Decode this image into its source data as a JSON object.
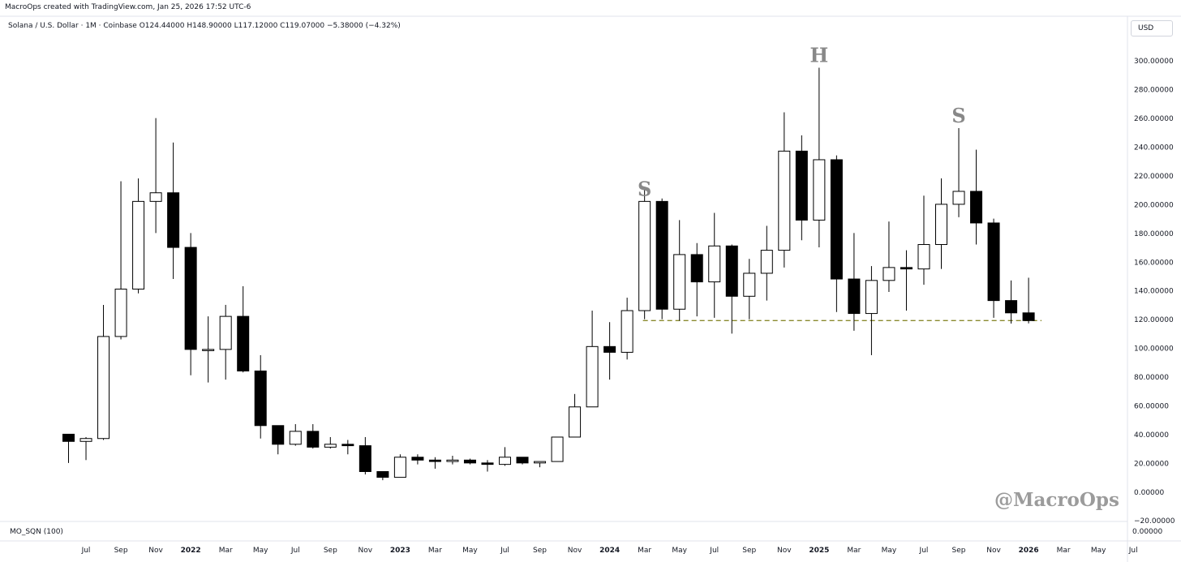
{
  "header": {
    "attribution": "MacroOps created with TradingView.com, Jan 25, 2026 17:52 UTC-6",
    "symbol_line": "Solana / U.S. Dollar · 1M · Coinbase  O124.44000  H148.90000  L117.12000  C119.07000  −5.38000 (−4.32%)",
    "currency_button": "USD"
  },
  "indicator": {
    "name": "MO_SQN (100)",
    "value": "0.00000"
  },
  "watermark": "@MacroOps",
  "colors": {
    "bull_fill": "#ffffff",
    "bear_fill": "#000000",
    "wick": "#000000",
    "support_line": "#8a8a2e",
    "pattern_label": "#888888",
    "axis_text": "#131722",
    "grid_border": "#e0e3eb"
  },
  "chart_data": {
    "type": "candlestick",
    "interval": "1M",
    "ylim": [
      -20,
      320
    ],
    "y_ticks": [
      "300.00000",
      "280.00000",
      "260.00000",
      "240.00000",
      "220.00000",
      "200.00000",
      "180.00000",
      "160.00000",
      "140.00000",
      "120.00000",
      "100.00000",
      "80.00000",
      "60.00000",
      "40.00000",
      "20.00000",
      "0.00000",
      "−20.00000"
    ],
    "x_ticks": [
      "Jul",
      "Sep",
      "Nov",
      "2022",
      "Mar",
      "May",
      "Jul",
      "Sep",
      "Nov",
      "2023",
      "Mar",
      "May",
      "Jul",
      "Sep",
      "Nov",
      "2024",
      "Mar",
      "May",
      "Jul",
      "Sep",
      "Nov",
      "2025",
      "Mar",
      "May",
      "Jul",
      "Sep",
      "Nov",
      "2026",
      "Mar",
      "May",
      "Jul"
    ],
    "bold_x_ticks": [
      "2022",
      "2023",
      "2024",
      "2025",
      "2026"
    ],
    "candles": [
      {
        "date": "2021-06",
        "o": 40,
        "h": 40,
        "l": 20,
        "c": 35
      },
      {
        "date": "2021-07",
        "o": 35,
        "h": 38,
        "l": 22,
        "c": 37
      },
      {
        "date": "2021-08",
        "o": 37,
        "h": 130,
        "l": 36,
        "c": 108
      },
      {
        "date": "2021-09",
        "o": 108,
        "h": 216,
        "l": 106,
        "c": 141
      },
      {
        "date": "2021-10",
        "o": 141,
        "h": 218,
        "l": 138,
        "c": 202
      },
      {
        "date": "2021-11",
        "o": 202,
        "h": 260,
        "l": 180,
        "c": 208
      },
      {
        "date": "2021-12",
        "o": 208,
        "h": 243,
        "l": 148,
        "c": 170
      },
      {
        "date": "2022-01",
        "o": 170,
        "h": 180,
        "l": 81,
        "c": 99
      },
      {
        "date": "2022-02",
        "o": 99,
        "h": 122,
        "l": 76,
        "c": 99
      },
      {
        "date": "2022-03",
        "o": 99,
        "h": 130,
        "l": 78,
        "c": 122
      },
      {
        "date": "2022-04",
        "o": 122,
        "h": 143,
        "l": 83,
        "c": 84
      },
      {
        "date": "2022-05",
        "o": 84,
        "h": 95,
        "l": 37,
        "c": 46
      },
      {
        "date": "2022-06",
        "o": 46,
        "h": 46,
        "l": 26,
        "c": 33
      },
      {
        "date": "2022-07",
        "o": 33,
        "h": 47,
        "l": 32,
        "c": 42
      },
      {
        "date": "2022-08",
        "o": 42,
        "h": 47,
        "l": 30,
        "c": 31
      },
      {
        "date": "2022-09",
        "o": 31,
        "h": 38,
        "l": 30,
        "c": 33
      },
      {
        "date": "2022-10",
        "o": 33,
        "h": 36,
        "l": 26,
        "c": 32
      },
      {
        "date": "2022-11",
        "o": 32,
        "h": 38,
        "l": 12,
        "c": 14
      },
      {
        "date": "2022-12",
        "o": 14,
        "h": 14,
        "l": 8,
        "c": 10
      },
      {
        "date": "2023-01",
        "o": 10,
        "h": 26,
        "l": 10,
        "c": 24
      },
      {
        "date": "2023-02",
        "o": 24,
        "h": 26,
        "l": 19,
        "c": 22
      },
      {
        "date": "2023-03",
        "o": 22,
        "h": 24,
        "l": 16,
        "c": 21
      },
      {
        "date": "2023-04",
        "o": 21,
        "h": 25,
        "l": 19,
        "c": 22
      },
      {
        "date": "2023-05",
        "o": 22,
        "h": 23,
        "l": 19,
        "c": 20
      },
      {
        "date": "2023-06",
        "o": 20,
        "h": 22,
        "l": 14,
        "c": 19
      },
      {
        "date": "2023-07",
        "o": 19,
        "h": 31,
        "l": 18,
        "c": 24
      },
      {
        "date": "2023-08",
        "o": 24,
        "h": 24,
        "l": 19,
        "c": 20
      },
      {
        "date": "2023-09",
        "o": 20,
        "h": 21,
        "l": 17,
        "c": 21
      },
      {
        "date": "2023-10",
        "o": 21,
        "h": 38,
        "l": 21,
        "c": 38
      },
      {
        "date": "2023-11",
        "o": 38,
        "h": 68,
        "l": 38,
        "c": 59
      },
      {
        "date": "2023-12",
        "o": 59,
        "h": 126,
        "l": 59,
        "c": 101
      },
      {
        "date": "2024-01",
        "o": 101,
        "h": 118,
        "l": 78,
        "c": 97
      },
      {
        "date": "2024-02",
        "o": 97,
        "h": 135,
        "l": 92,
        "c": 126
      },
      {
        "date": "2024-03",
        "o": 126,
        "h": 210,
        "l": 120,
        "c": 202
      },
      {
        "date": "2024-04",
        "o": 202,
        "h": 204,
        "l": 120,
        "c": 127
      },
      {
        "date": "2024-05",
        "o": 127,
        "h": 189,
        "l": 119,
        "c": 165
      },
      {
        "date": "2024-06",
        "o": 165,
        "h": 173,
        "l": 122,
        "c": 146
      },
      {
        "date": "2024-07",
        "o": 146,
        "h": 194,
        "l": 121,
        "c": 171
      },
      {
        "date": "2024-08",
        "o": 171,
        "h": 172,
        "l": 110,
        "c": 136
      },
      {
        "date": "2024-09",
        "o": 136,
        "h": 162,
        "l": 120,
        "c": 152
      },
      {
        "date": "2024-10",
        "o": 152,
        "h": 185,
        "l": 133,
        "c": 168
      },
      {
        "date": "2024-11",
        "o": 168,
        "h": 264,
        "l": 156,
        "c": 237
      },
      {
        "date": "2024-12",
        "o": 237,
        "h": 248,
        "l": 175,
        "c": 189
      },
      {
        "date": "2025-01",
        "o": 189,
        "h": 295,
        "l": 170,
        "c": 231
      },
      {
        "date": "2025-02",
        "o": 231,
        "h": 234,
        "l": 125,
        "c": 148
      },
      {
        "date": "2025-03",
        "o": 148,
        "h": 180,
        "l": 112,
        "c": 124
      },
      {
        "date": "2025-04",
        "o": 124,
        "h": 157,
        "l": 95,
        "c": 147
      },
      {
        "date": "2025-05",
        "o": 147,
        "h": 188,
        "l": 139,
        "c": 156
      },
      {
        "date": "2025-06",
        "o": 156,
        "h": 168,
        "l": 126,
        "c": 155
      },
      {
        "date": "2025-07",
        "o": 155,
        "h": 206,
        "l": 144,
        "c": 172
      },
      {
        "date": "2025-08",
        "o": 172,
        "h": 218,
        "l": 155,
        "c": 200
      },
      {
        "date": "2025-09",
        "o": 200,
        "h": 253,
        "l": 191,
        "c": 209
      },
      {
        "date": "2025-10",
        "o": 209,
        "h": 238,
        "l": 172,
        "c": 187
      },
      {
        "date": "2025-11",
        "o": 187,
        "h": 190,
        "l": 121,
        "c": 133
      },
      {
        "date": "2025-12",
        "o": 133,
        "h": 147,
        "l": 117,
        "c": 124.44
      },
      {
        "date": "2026-01",
        "o": 124.44,
        "h": 148.9,
        "l": 117.12,
        "c": 119.07
      }
    ],
    "support_level": 119.07,
    "support_line_start": "2024-03",
    "annotations": [
      {
        "text": "S",
        "date": "2024-03",
        "price": 206
      },
      {
        "text": "H",
        "date": "2025-01",
        "price": 299
      },
      {
        "text": "S",
        "date": "2025-09",
        "price": 257
      }
    ]
  }
}
